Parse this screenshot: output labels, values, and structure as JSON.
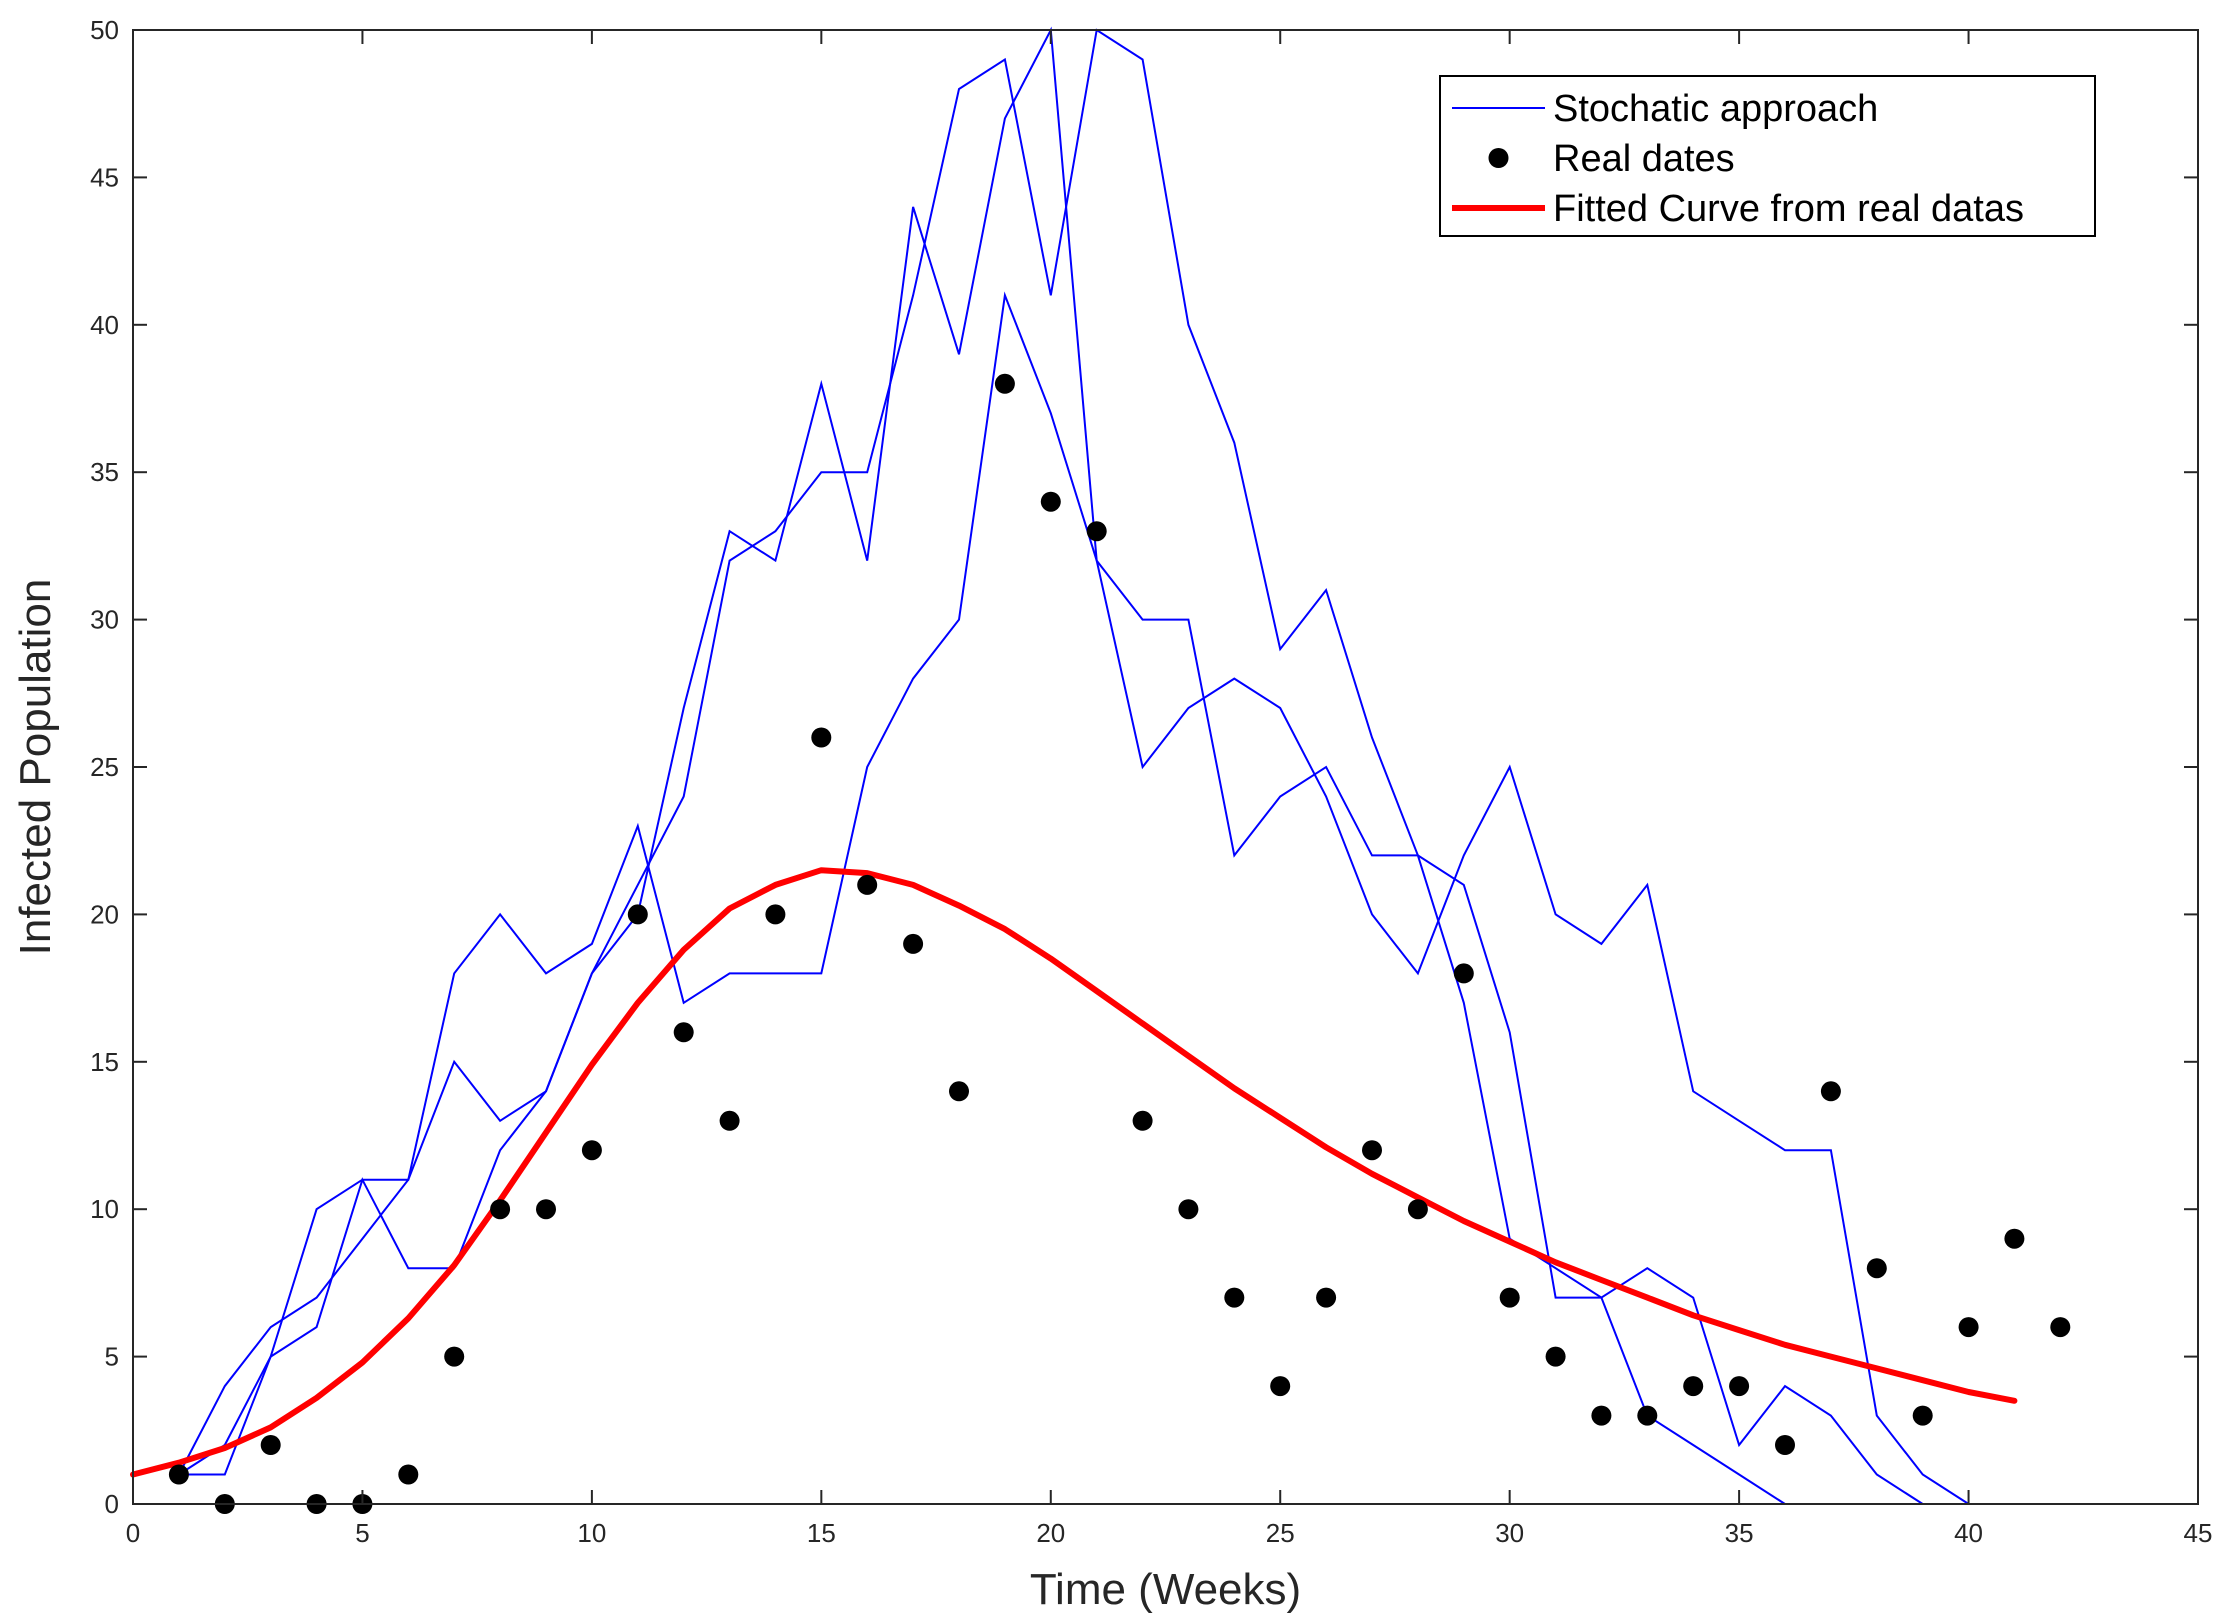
{
  "chart_data": {
    "type": "line",
    "xlabel": "Time (Weeks)",
    "ylabel": "Infected Population",
    "xlim": [
      0,
      45
    ],
    "ylim": [
      0,
      50
    ],
    "xticks": [
      0,
      5,
      10,
      15,
      20,
      25,
      30,
      35,
      40,
      45
    ],
    "yticks": [
      0,
      5,
      10,
      15,
      20,
      25,
      30,
      35,
      40,
      45,
      50
    ],
    "grid": false,
    "legend_position": "top-right",
    "legend": [
      {
        "label": "Stochatic approach",
        "style": "line",
        "color": "#0000ff"
      },
      {
        "label": "Real dates",
        "style": "marker",
        "color": "#000000"
      },
      {
        "label": "Fitted Curve from real datas",
        "style": "thick-line",
        "color": "#ff0000"
      }
    ],
    "stochastic_series": [
      {
        "name": "Stochatic approach run 1",
        "x": [
          1,
          2,
          3,
          4,
          5,
          6,
          7,
          8,
          9,
          10,
          11,
          12,
          13,
          14,
          15,
          16,
          17,
          18,
          19,
          20,
          21,
          22,
          23,
          24,
          25,
          26,
          27,
          28,
          29,
          30,
          31,
          32,
          33,
          34,
          35,
          36
        ],
        "y": [
          1,
          4,
          6,
          7,
          9,
          11,
          18,
          20,
          18,
          19,
          23,
          17,
          18,
          18,
          18,
          25,
          28,
          30,
          41,
          37,
          32,
          30,
          30,
          22,
          24,
          25,
          22,
          22,
          21,
          16,
          7,
          7,
          3,
          2,
          1,
          0
        ]
      },
      {
        "name": "Stochatic approach run 2",
        "x": [
          1,
          2,
          3,
          4,
          5,
          6,
          7,
          8,
          9,
          10,
          11,
          12,
          13,
          14,
          15,
          16,
          17,
          18,
          19,
          20,
          21,
          22,
          23,
          24,
          25,
          26,
          27,
          28,
          29,
          30,
          31,
          32,
          33,
          34,
          35,
          36,
          37,
          38,
          39,
          40
        ],
        "y": [
          1,
          1,
          5,
          10,
          11,
          11,
          15,
          13,
          14,
          18,
          20,
          27,
          33,
          32,
          38,
          32,
          44,
          39,
          47,
          50,
          32,
          25,
          27,
          28,
          27,
          24,
          20,
          18,
          22,
          25,
          20,
          19,
          21,
          14,
          13,
          12,
          12,
          3,
          1,
          0
        ]
      },
      {
        "name": "Stochatic approach run 3",
        "x": [
          1,
          2,
          3,
          4,
          5,
          6,
          7,
          8,
          9,
          10,
          11,
          12,
          13,
          14,
          15,
          16,
          17,
          18,
          19,
          20,
          21,
          22,
          23,
          24,
          25,
          26,
          27,
          28,
          29,
          30,
          31,
          32,
          33,
          34,
          35,
          36,
          37,
          38,
          39
        ],
        "y": [
          1,
          2,
          5,
          6,
          11,
          8,
          8,
          12,
          14,
          18,
          21,
          24,
          32,
          33,
          35,
          35,
          41,
          48,
          49,
          41,
          50,
          49,
          40,
          36,
          29,
          31,
          26,
          22,
          17,
          9,
          8,
          7,
          8,
          7,
          2,
          4,
          3,
          1,
          0
        ]
      }
    ],
    "real_data": {
      "name": "Real dates",
      "x": [
        1,
        2,
        3,
        4,
        5,
        6,
        7,
        8,
        9,
        10,
        11,
        12,
        13,
        14,
        15,
        16,
        17,
        18,
        19,
        20,
        21,
        22,
        23,
        24,
        25,
        26,
        27,
        28,
        29,
        30,
        31,
        32,
        33,
        34,
        35,
        36,
        37,
        38,
        39,
        40,
        41,
        42
      ],
      "y": [
        1,
        0,
        2,
        0,
        0,
        1,
        5,
        10,
        10,
        12,
        20,
        16,
        13,
        20,
        26,
        21,
        19,
        14,
        38,
        34,
        33,
        13,
        10,
        7,
        4,
        7,
        12,
        10,
        18,
        7,
        5,
        3,
        3,
        4,
        4,
        2,
        14,
        8,
        3,
        6,
        9,
        6
      ]
    },
    "fitted_curve": {
      "name": "Fitted Curve from real datas",
      "x": [
        0,
        1,
        2,
        3,
        4,
        5,
        6,
        7,
        8,
        9,
        10,
        11,
        12,
        13,
        14,
        15,
        16,
        17,
        18,
        19,
        20,
        21,
        22,
        23,
        24,
        25,
        26,
        27,
        28,
        29,
        30,
        31,
        32,
        33,
        34,
        35,
        36,
        37,
        38,
        39,
        40,
        41
      ],
      "y": [
        1.0,
        1.4,
        1.9,
        2.6,
        3.6,
        4.8,
        6.3,
        8.1,
        10.3,
        12.6,
        14.9,
        17.0,
        18.8,
        20.2,
        21.0,
        21.5,
        21.4,
        21.0,
        20.3,
        19.5,
        18.5,
        17.4,
        16.3,
        15.2,
        14.1,
        13.1,
        12.1,
        11.2,
        10.4,
        9.6,
        8.9,
        8.2,
        7.6,
        7.0,
        6.4,
        5.9,
        5.4,
        5.0,
        4.6,
        4.2,
        3.8,
        3.5
      ]
    }
  }
}
